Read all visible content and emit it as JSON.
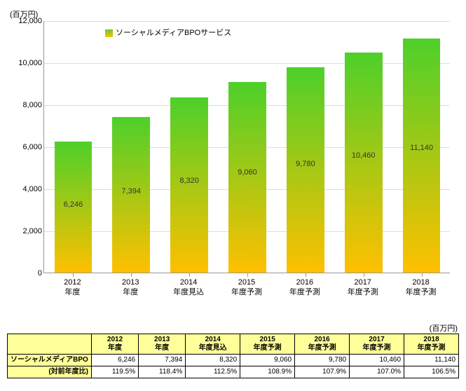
{
  "chart": {
    "type": "bar",
    "y_unit_label": "(百万円)",
    "ylim": [
      0,
      12000
    ],
    "ytick_step": 2000,
    "yticks": [
      0,
      2000,
      4000,
      6000,
      8000,
      10000,
      12000
    ],
    "ytick_labels": [
      "0",
      "2,000",
      "4,000",
      "6,000",
      "8,000",
      "10,000",
      "12,000"
    ],
    "categories": [
      "2012\n年度",
      "2013\n年度",
      "2014\n年度見込",
      "2015\n年度予測",
      "2016\n年度予測",
      "2017\n年度予測",
      "2018\n年度予測"
    ],
    "series_name": "ソーシャルメディアBPOサービス",
    "values": [
      6246,
      7394,
      8320,
      9060,
      9780,
      10460,
      11140
    ],
    "value_labels": [
      "6,246",
      "7,394",
      "8,320",
      "9,060",
      "9,780",
      "10,460",
      "11,140"
    ],
    "bar_fill_top": "#4dd02a",
    "bar_fill_bottom": "#ffc000",
    "bar_width_ratio": 0.65,
    "grid_color": "#dddddd",
    "axis_color": "#999999",
    "legend_swatch_top": "#66cc33",
    "legend_swatch_bottom": "#ffc000",
    "label_fontsize": 11
  },
  "table": {
    "unit_label": "(百万円)",
    "col_headers": [
      "2012\n年度",
      "2013\n年度",
      "2014\n年度見込",
      "2015\n年度予測",
      "2016\n年度予測",
      "2017\n年度予測",
      "2018\n年度予測"
    ],
    "rows": [
      {
        "label": "ソーシャルメディアBPO",
        "cells": [
          "6,246",
          "7,394",
          "8,320",
          "9,060",
          "9,780",
          "10,460",
          "11,140"
        ]
      },
      {
        "label": "(対前年度比)",
        "cells": [
          "119.5%",
          "118.4%",
          "112.5%",
          "108.9%",
          "107.9%",
          "107.0%",
          "106.5%"
        ]
      }
    ],
    "header_bg": "#ffff99"
  }
}
